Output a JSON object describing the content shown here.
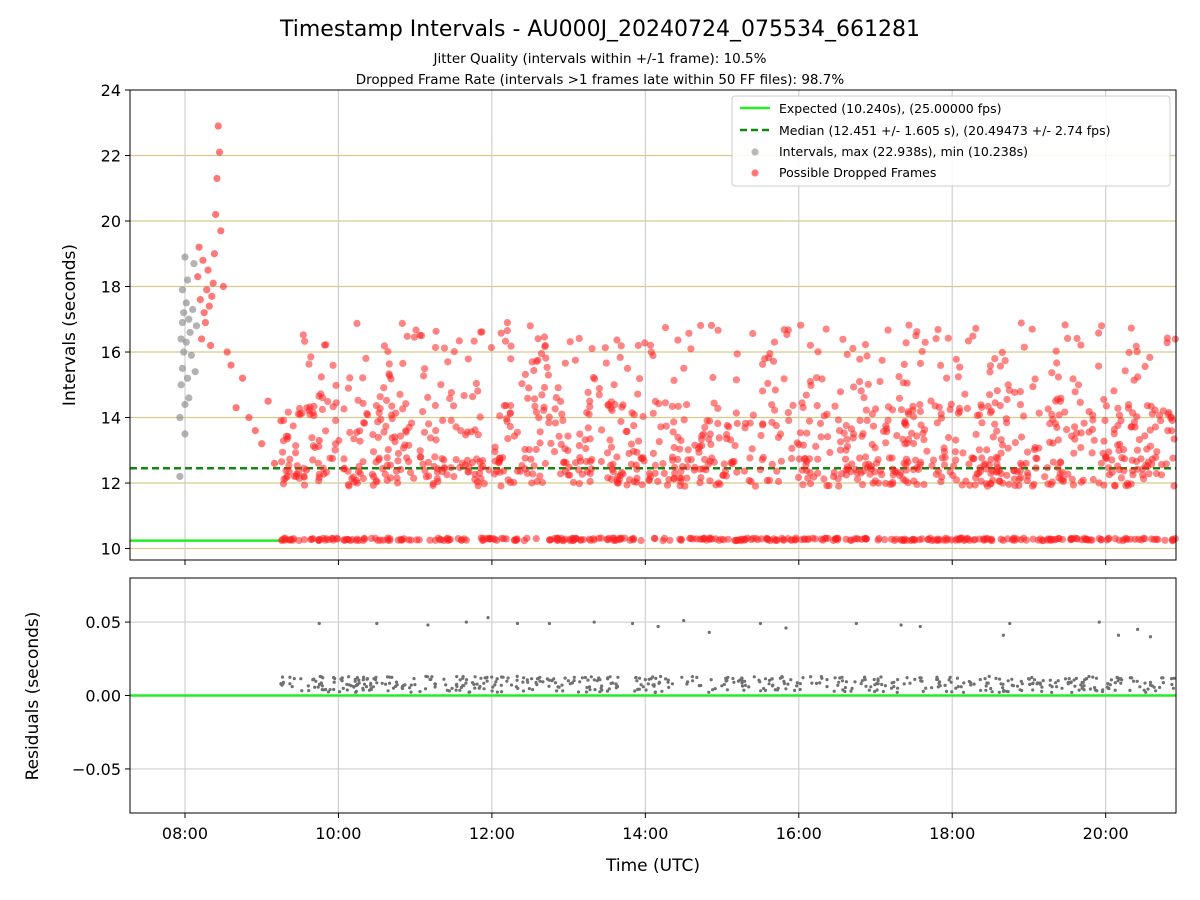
{
  "title": "Timestamp Intervals - AU000J_20240724_075534_661281",
  "subtitle1": "Jitter Quality (intervals within +/-1 frame): 10.5%",
  "subtitle2": "Dropped Frame Rate (intervals >1 frames late within 50 FF files): 98.7%",
  "colors": {
    "expected": "#22ee22",
    "median": "#118811",
    "intervals": "#8a8a8a",
    "dropped": "#ff2020",
    "residuals": "#707070",
    "hgrid": "#d8c98a",
    "vgrid": "#cfcfcf"
  },
  "chart_data": [
    {
      "type": "scatter",
      "xlabel": "",
      "ylabel": "Intervals (seconds)",
      "xlim": [
        "07:17",
        "20:55"
      ],
      "ylim": [
        9.65,
        24
      ],
      "yticks": [
        "10",
        "12",
        "14",
        "16",
        "18",
        "20",
        "22",
        "24"
      ],
      "grid": true,
      "legend": {
        "placement": "top-right",
        "entries": [
          "Expected (10.240s), (25.00000 fps)",
          "Median (12.451 +/- 1.605 s), (20.49473 +/- 2.74 fps)",
          "Intervals, max (22.938s), min (10.238s)",
          "Possible Dropped Frames"
        ]
      },
      "expected_line": 10.24,
      "median_line": 12.451,
      "interval_max": 22.938,
      "interval_min": 10.238,
      "series": [
        {
          "name": "Intervals, max (22.938s), min (10.238s)",
          "points": [
            [
              "07:56",
              12.2
            ],
            [
              "07:56",
              14.0
            ],
            [
              "07:57",
              15.0
            ],
            [
              "07:57",
              16.4
            ],
            [
              "07:58",
              17.9
            ],
            [
              "07:58",
              16.9
            ],
            [
              "07:58",
              15.5
            ],
            [
              "07:59",
              17.2
            ],
            [
              "07:59",
              16.0
            ],
            [
              "08:00",
              18.9
            ],
            [
              "08:00",
              13.5
            ],
            [
              "08:00",
              14.4
            ],
            [
              "08:01",
              17.5
            ],
            [
              "08:01",
              16.3
            ],
            [
              "08:02",
              15.2
            ],
            [
              "08:02",
              18.2
            ],
            [
              "08:03",
              17.0
            ],
            [
              "08:03",
              14.6
            ],
            [
              "08:04",
              16.6
            ],
            [
              "08:05",
              15.9
            ],
            [
              "08:06",
              17.3
            ],
            [
              "08:07",
              18.7
            ],
            [
              "08:08",
              15.4
            ],
            [
              "08:09",
              16.8
            ]
          ]
        },
        {
          "name": "Possible Dropped Frames",
          "points": [
            [
              "08:10",
              18.3
            ],
            [
              "08:11",
              19.2
            ],
            [
              "08:12",
              17.6
            ],
            [
              "08:13",
              16.4
            ],
            [
              "08:14",
              18.8
            ],
            [
              "08:15",
              17.2
            ],
            [
              "08:16",
              16.9
            ],
            [
              "08:17",
              17.9
            ],
            [
              "08:18",
              18.5
            ],
            [
              "08:19",
              17.4
            ],
            [
              "08:20",
              16.2
            ],
            [
              "08:21",
              17.7
            ],
            [
              "08:22",
              18.1
            ],
            [
              "08:23",
              19.0
            ],
            [
              "08:24",
              20.2
            ],
            [
              "08:25",
              21.3
            ],
            [
              "08:26",
              22.9
            ],
            [
              "08:27",
              22.1
            ],
            [
              "08:28",
              19.7
            ],
            [
              "08:30",
              18.0
            ],
            [
              "08:33",
              16.0
            ],
            [
              "08:36",
              15.6
            ],
            [
              "08:40",
              14.3
            ],
            [
              "08:45",
              15.2
            ],
            [
              "08:50",
              14.0
            ],
            [
              "08:55",
              13.6
            ],
            [
              "09:00",
              13.2
            ],
            [
              "09:05",
              14.5
            ],
            [
              "09:10",
              12.6
            ],
            [
              "09:15",
              13.9
            ],
            [
              "09:20",
              12.2
            ],
            [
              "09:25",
              10.3
            ],
            [
              "09:30",
              14.1
            ],
            [
              "09:35",
              12.4
            ],
            [
              "09:40",
              10.3
            ],
            [
              "09:45",
              13.3
            ]
          ]
        }
      ]
    },
    {
      "type": "scatter",
      "xlabel": "Time (UTC)",
      "ylabel": "Residuals (seconds)",
      "xlim": [
        "07:17",
        "20:55"
      ],
      "ylim": [
        -0.08,
        0.08
      ],
      "yticks": [
        "−0.05",
        "0.00",
        "0.05"
      ],
      "xticks": [
        "08:00",
        "10:00",
        "12:00",
        "14:00",
        "16:00",
        "18:00",
        "20:00"
      ],
      "grid": true,
      "reference_line": 0.0,
      "series": [
        {
          "name": "Residuals",
          "points": [
            [
              "09:15",
              0.008
            ],
            [
              "09:45",
              0.049
            ],
            [
              "10:30",
              0.049
            ],
            [
              "11:10",
              0.048
            ],
            [
              "11:40",
              0.05
            ],
            [
              "11:57",
              0.053
            ],
            [
              "12:20",
              0.049
            ],
            [
              "12:45",
              0.049
            ],
            [
              "13:20",
              0.05
            ],
            [
              "13:50",
              0.049
            ],
            [
              "14:10",
              0.047
            ],
            [
              "14:30",
              0.051
            ],
            [
              "14:50",
              0.043
            ],
            [
              "15:30",
              0.049
            ],
            [
              "15:50",
              0.046
            ],
            [
              "16:45",
              0.049
            ],
            [
              "17:20",
              0.048
            ],
            [
              "17:35",
              0.047
            ],
            [
              "18:40",
              0.041
            ],
            [
              "18:45",
              0.049
            ],
            [
              "19:55",
              0.05
            ],
            [
              "20:10",
              0.041
            ],
            [
              "20:25",
              0.045
            ],
            [
              "20:35",
              0.04
            ]
          ]
        }
      ]
    }
  ]
}
